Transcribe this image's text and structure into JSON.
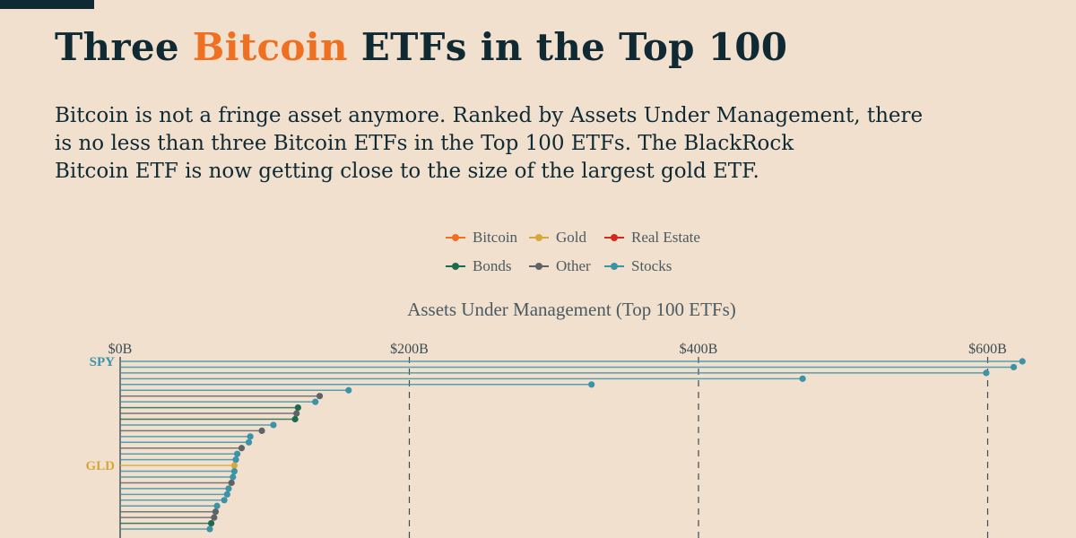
{
  "title": {
    "pre": "Three ",
    "accent": "Bitcoin",
    "post": " ETFs in the Top 100"
  },
  "subtitle_lines": [
    "Bitcoin is not a fringe asset anymore. Ranked by Assets Under Management, there",
    "is no less than three Bitcoin ETFs in the Top 100 ETFs. The BlackRock",
    "Bitcoin ETF is now getting close to the size of the largest gold ETF."
  ],
  "colors": {
    "Bitcoin": "#f07021",
    "Gold": "#d4a93a",
    "Real Estate": "#d42a1e",
    "Bonds": "#1d6b4e",
    "Other": "#5e6466",
    "Stocks": "#3b93a8",
    "axis": "#3c4c52",
    "title": "#0f2a33"
  },
  "chart_data": {
    "type": "lollipop",
    "title": "Assets Under Management (Top 100 ETFs)",
    "xlabel": "Assets Under Management (Top 100 ETFs)",
    "xlim": [
      0,
      630
    ],
    "x_ticks": [
      0,
      200,
      400,
      600
    ],
    "x_tick_labels": [
      "$0B",
      "$200B",
      "$400B",
      "$600B"
    ],
    "grid": "vertical dashed lines at $200B, $400B, $600B",
    "legend_position": "top-center",
    "legend": [
      "Bitcoin",
      "Gold",
      "Real Estate",
      "Bonds",
      "Other",
      "Stocks"
    ],
    "series": [
      {
        "label": "SPY",
        "value": 624,
        "category": "Stocks"
      },
      {
        "label": "",
        "value": 618,
        "category": "Stocks"
      },
      {
        "label": "",
        "value": 599,
        "category": "Stocks"
      },
      {
        "label": "",
        "value": 472,
        "category": "Stocks"
      },
      {
        "label": "",
        "value": 326,
        "category": "Stocks"
      },
      {
        "label": "",
        "value": 158,
        "category": "Stocks"
      },
      {
        "label": "",
        "value": 138,
        "category": "Other"
      },
      {
        "label": "",
        "value": 135,
        "category": "Stocks"
      },
      {
        "label": "",
        "value": 123,
        "category": "Bonds"
      },
      {
        "label": "",
        "value": 122,
        "category": "Other"
      },
      {
        "label": "",
        "value": 121,
        "category": "Bonds"
      },
      {
        "label": "",
        "value": 106,
        "category": "Stocks"
      },
      {
        "label": "",
        "value": 98,
        "category": "Other"
      },
      {
        "label": "",
        "value": 90,
        "category": "Stocks"
      },
      {
        "label": "",
        "value": 89,
        "category": "Stocks"
      },
      {
        "label": "",
        "value": 84,
        "category": "Other"
      },
      {
        "label": "",
        "value": 81,
        "category": "Stocks"
      },
      {
        "label": "",
        "value": 80,
        "category": "Stocks"
      },
      {
        "label": "GLD",
        "value": 79,
        "category": "Gold"
      },
      {
        "label": "",
        "value": 79,
        "category": "Stocks"
      },
      {
        "label": "",
        "value": 78,
        "category": "Stocks"
      },
      {
        "label": "",
        "value": 77,
        "category": "Other"
      },
      {
        "label": "",
        "value": 75,
        "category": "Stocks"
      },
      {
        "label": "",
        "value": 74,
        "category": "Stocks"
      },
      {
        "label": "",
        "value": 72,
        "category": "Stocks"
      },
      {
        "label": "",
        "value": 67,
        "category": "Stocks"
      },
      {
        "label": "",
        "value": 66,
        "category": "Other"
      },
      {
        "label": "",
        "value": 65,
        "category": "Other"
      },
      {
        "label": "",
        "value": 63,
        "category": "Bonds"
      },
      {
        "label": "",
        "value": 62,
        "category": "Stocks"
      }
    ]
  }
}
